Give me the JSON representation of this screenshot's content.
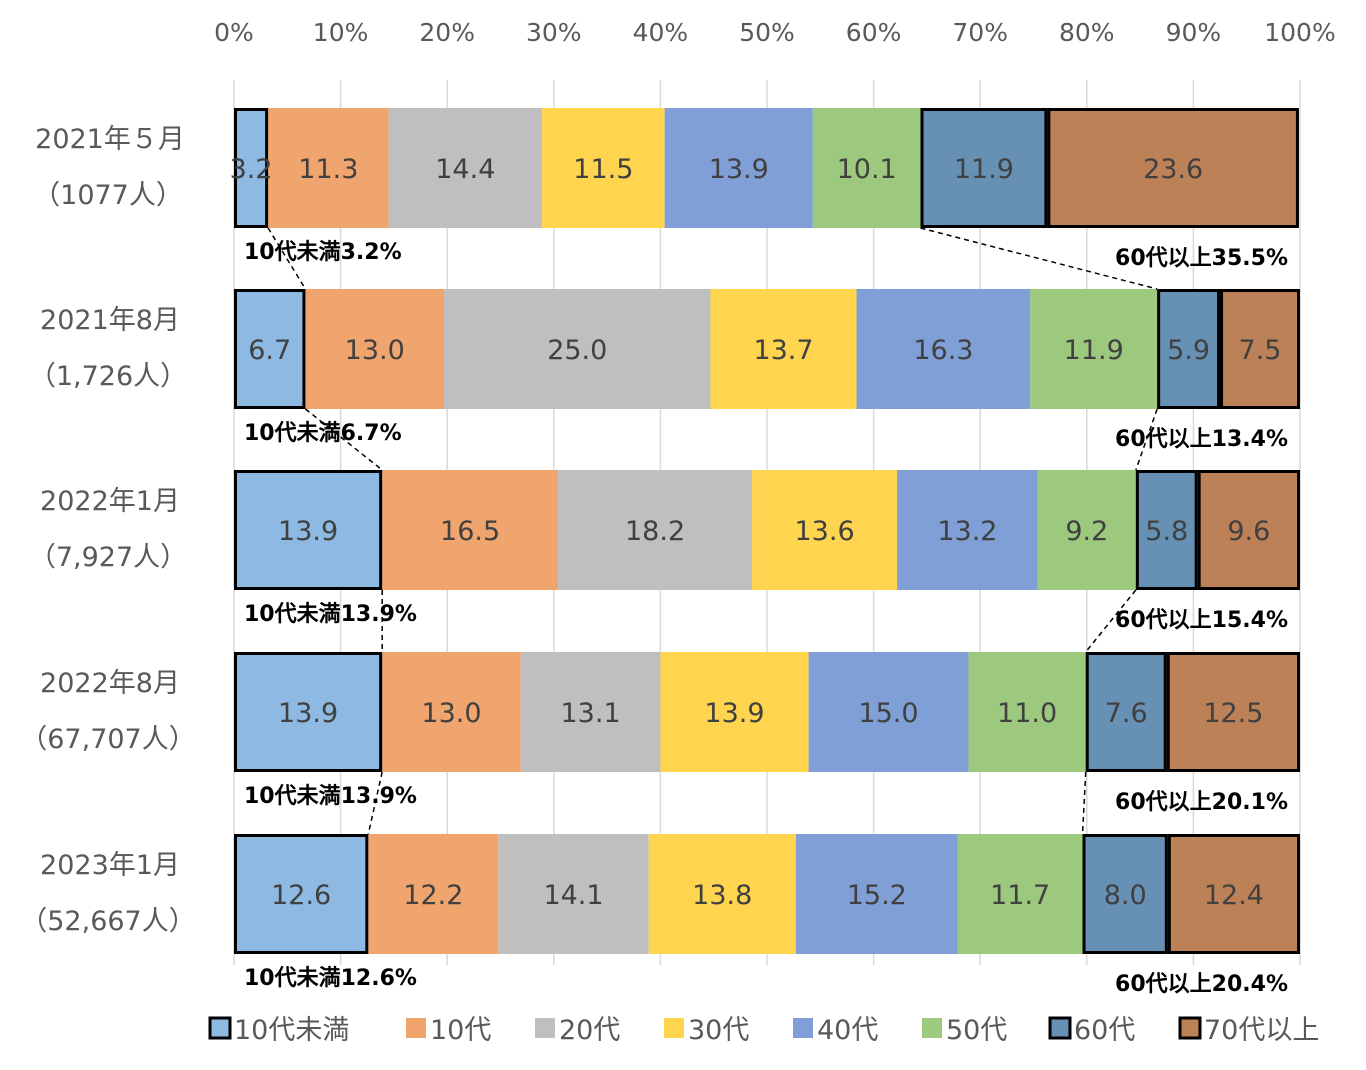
{
  "chart_data": {
    "type": "bar",
    "orientation": "horizontal",
    "stacked": "100%",
    "xlim": [
      0,
      100
    ],
    "x_ticks": [
      "0%",
      "10%",
      "20%",
      "30%",
      "40%",
      "50%",
      "60%",
      "70%",
      "80%",
      "90%",
      "100%"
    ],
    "categories": [
      [
        "2021年５月",
        "（1077人）"
      ],
      [
        "2021年8月",
        "（1,726人）"
      ],
      [
        "2022年1月",
        "（7,927人）"
      ],
      [
        "2022年8月",
        "（67,707人）"
      ],
      [
        "2023年1月",
        "（52,667人）"
      ]
    ],
    "series": [
      {
        "name": "10代未満",
        "color": "#8DB9E2",
        "outlined": true,
        "values": [
          3.2,
          6.7,
          13.9,
          13.9,
          12.6
        ],
        "labels": [
          "3.2",
          "6.7",
          "13.9",
          "13.9",
          "12.6"
        ]
      },
      {
        "name": "10代",
        "color": "#F0A46E",
        "outlined": false,
        "values": [
          11.3,
          13.0,
          16.5,
          13.0,
          12.2
        ],
        "labels": [
          "11.3",
          "13.0",
          "16.5",
          "13.0",
          "12.2"
        ]
      },
      {
        "name": "20代",
        "color": "#BFBFBF",
        "outlined": false,
        "values": [
          14.4,
          25.0,
          18.2,
          13.1,
          14.1
        ],
        "labels": [
          "14.4",
          "25.0",
          "18.2",
          "13.1",
          "14.1"
        ]
      },
      {
        "name": "30代",
        "color": "#FFD44E",
        "outlined": false,
        "values": [
          11.5,
          13.7,
          13.6,
          13.9,
          13.8
        ],
        "labels": [
          "11.5",
          "13.7",
          "13.6",
          "13.9",
          "13.8"
        ]
      },
      {
        "name": "40代",
        "color": "#7F9FD6",
        "outlined": false,
        "values": [
          13.9,
          16.3,
          13.2,
          15.0,
          15.2
        ],
        "labels": [
          "13.9",
          "16.3",
          "13.2",
          "15.0",
          "15.2"
        ]
      },
      {
        "name": "50代",
        "color": "#9DC97F",
        "outlined": false,
        "values": [
          10.1,
          11.9,
          9.2,
          11.0,
          11.7
        ],
        "labels": [
          "10.1",
          "11.9",
          "9.2",
          "11.0",
          "11.7"
        ]
      },
      {
        "name": "60代",
        "color": "#6690B4",
        "outlined": true,
        "values": [
          11.9,
          5.9,
          5.8,
          7.6,
          8.0
        ],
        "labels": [
          "11.9",
          "5.9",
          "5.8",
          "7.6",
          "8.0"
        ]
      },
      {
        "name": "70代以上",
        "color": "#BC8156",
        "outlined": true,
        "values": [
          23.6,
          7.5,
          9.6,
          12.5,
          12.4
        ],
        "labels": [
          "23.6",
          "7.5",
          "9.6",
          "12.5",
          "12.4"
        ]
      }
    ],
    "annotations_under10": [
      "10代未満3.2%",
      "10代未満6.7%",
      "10代未満13.9%",
      "10代未満13.9%",
      "10代未満12.6%"
    ],
    "annotations_60plus": [
      "60代以上35.5%",
      "60代以上13.4%",
      "60代以上15.4%",
      "60代以上20.1%",
      "60代以上20.4%"
    ],
    "grid": "vertical",
    "legend_position": "bottom"
  }
}
